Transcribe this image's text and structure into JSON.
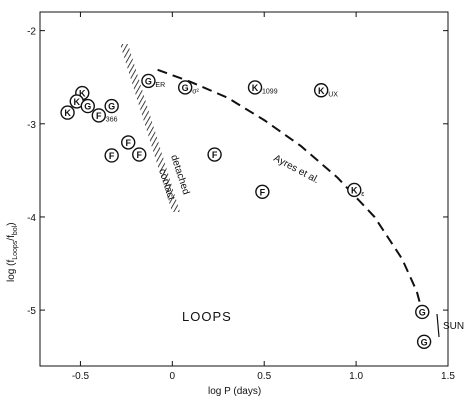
{
  "chart_data": {
    "type": "scatter",
    "title": "",
    "xlabel": "log P (days)",
    "ylabel": "log (f",
    "ylabel_sub1": "Loops",
    "ylabel_mid": "/f",
    "ylabel_sub2": "bol",
    "ylabel_end": ")",
    "xlim": [
      -0.72,
      1.5
    ],
    "ylim": [
      -5.6,
      -1.8
    ],
    "x_ticks": [
      {
        "value": -0.5,
        "label": "-0.5"
      },
      {
        "value": 0.0,
        "label": "0"
      },
      {
        "value": 0.5,
        "label": "0.5"
      },
      {
        "value": 1.0,
        "label": "1.0"
      },
      {
        "value": 1.5,
        "label": "1.5"
      }
    ],
    "y_ticks": [
      {
        "value": -2,
        "label": "-2"
      },
      {
        "value": -3,
        "label": "-3"
      },
      {
        "value": -4,
        "label": "-4"
      },
      {
        "value": -5,
        "label": "-5"
      }
    ],
    "points": [
      {
        "x": -0.49,
        "y": -2.67,
        "letter": "K",
        "sub": ""
      },
      {
        "x": -0.52,
        "y": -2.76,
        "letter": "K",
        "sub": ""
      },
      {
        "x": -0.57,
        "y": -2.88,
        "letter": "K",
        "sub": ""
      },
      {
        "x": -0.46,
        "y": -2.81,
        "letter": "G",
        "sub": ""
      },
      {
        "x": -0.33,
        "y": -2.81,
        "letter": "G",
        "sub": ""
      },
      {
        "x": -0.4,
        "y": -2.91,
        "letter": "F",
        "sub": "366"
      },
      {
        "x": -0.24,
        "y": -3.2,
        "letter": "F",
        "sub": ""
      },
      {
        "x": -0.33,
        "y": -3.34,
        "letter": "F",
        "sub": ""
      },
      {
        "x": -0.18,
        "y": -3.33,
        "letter": "F",
        "sub": ""
      },
      {
        "x": -0.13,
        "y": -2.54,
        "letter": "G",
        "sub": "ER"
      },
      {
        "x": 0.07,
        "y": -2.61,
        "letter": "G",
        "sub": "σ²"
      },
      {
        "x": 0.45,
        "y": -2.61,
        "letter": "K",
        "sub": "1099"
      },
      {
        "x": 0.81,
        "y": -2.64,
        "letter": "K",
        "sub": "UX"
      },
      {
        "x": 0.23,
        "y": -3.33,
        "letter": "F",
        "sub": ""
      },
      {
        "x": 0.49,
        "y": -3.73,
        "letter": "F",
        "sub": ""
      },
      {
        "x": 0.99,
        "y": -3.71,
        "letter": "K",
        "sub": "ε"
      },
      {
        "x": 1.36,
        "y": -5.02,
        "letter": "G",
        "sub": ""
      },
      {
        "x": 1.37,
        "y": -5.34,
        "letter": "G",
        "sub": ""
      }
    ],
    "curve_label": "Ayres et al.",
    "curve": [
      [
        -0.08,
        -2.42
      ],
      [
        0.1,
        -2.55
      ],
      [
        0.3,
        -2.72
      ],
      [
        0.5,
        -2.96
      ],
      [
        0.7,
        -3.24
      ],
      [
        0.9,
        -3.58
      ],
      [
        1.1,
        -4.0
      ],
      [
        1.25,
        -4.45
      ],
      [
        1.33,
        -4.8
      ],
      [
        1.36,
        -5.02
      ]
    ],
    "band_label_1": "detached",
    "band_label_2": "contact",
    "region_label": "LOOPS",
    "sun_label": "SUN"
  }
}
